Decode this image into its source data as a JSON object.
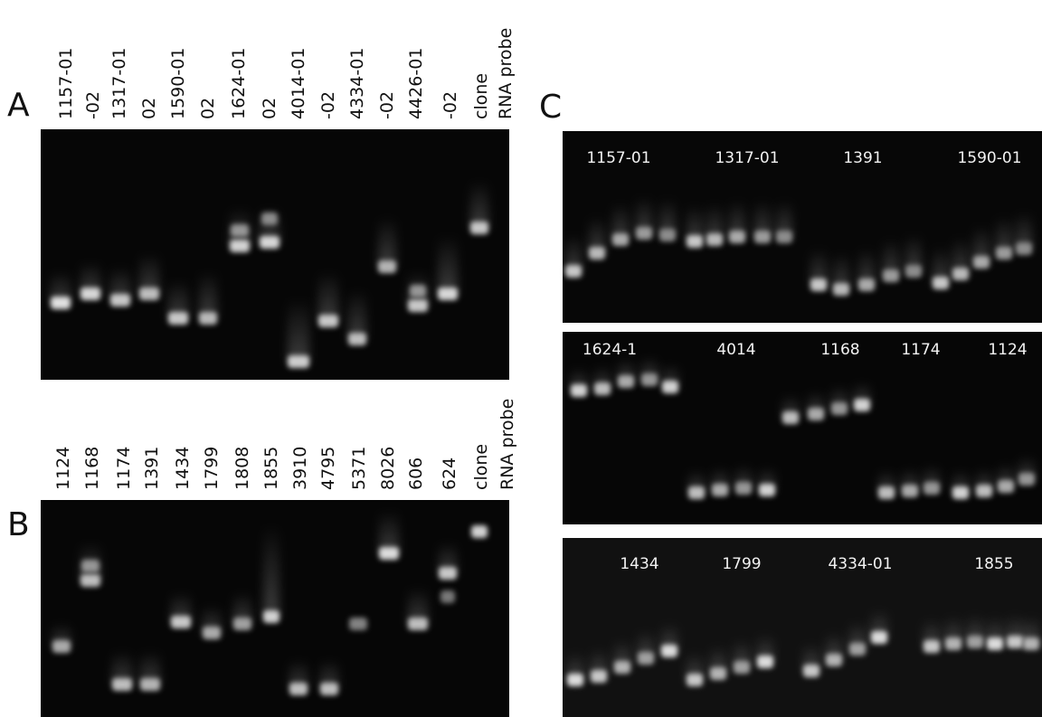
{
  "panel_a": {
    "label": "A",
    "lanes": [
      "1157-01",
      "-02",
      "1317-01",
      "02",
      "1590-01",
      "02",
      "1624-01",
      "02",
      "4014-01",
      "-02",
      "4334-01",
      "-02",
      "4426-01",
      "-02",
      "clone",
      "RNA probe"
    ]
  },
  "panel_b": {
    "label": "B",
    "lanes": [
      "1124",
      "1168",
      "1174",
      "1391",
      "1434",
      "1799",
      "1808",
      "1855",
      "3910",
      "4795",
      "5371",
      "8026",
      "606",
      "624",
      "clone",
      "RNA probe"
    ]
  },
  "panel_c": {
    "label": "C",
    "gels": [
      {
        "lanes": [
          "1157-01",
          "1317-01",
          "1391",
          "1590-01"
        ]
      },
      {
        "lanes": [
          "1624-1",
          "4014",
          "1168",
          "1174",
          "1124"
        ]
      },
      {
        "lanes": [
          "1434",
          "1799",
          "4334-01",
          "1855"
        ]
      }
    ]
  }
}
